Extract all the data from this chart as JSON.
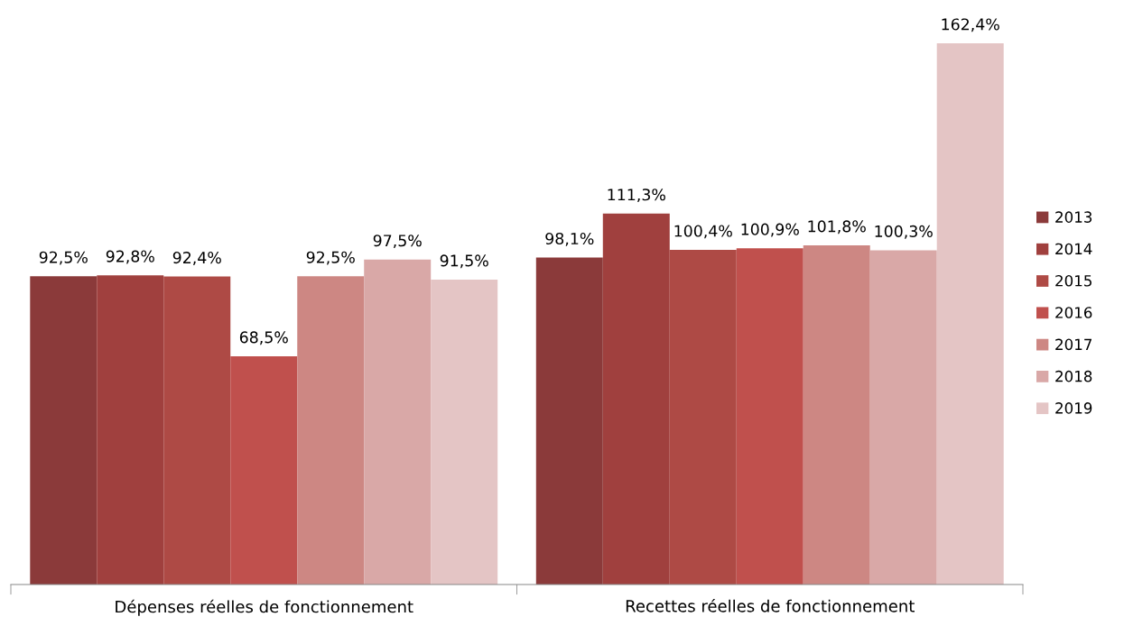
{
  "chart_data": {
    "type": "bar",
    "categories": [
      "Dépenses réelles de fonctionnement",
      "Recettes réelles de fonctionnement"
    ],
    "series": [
      {
        "name": "2013",
        "color": "#8b3a3a",
        "values": [
          92.5,
          98.1
        ],
        "value_labels": [
          "92,5%",
          "98,1%"
        ]
      },
      {
        "name": "2014",
        "color": "#a0403e",
        "values": [
          92.8,
          111.3
        ],
        "value_labels": [
          "92,8%",
          "111,3%"
        ]
      },
      {
        "name": "2015",
        "color": "#ae4a45",
        "values": [
          92.4,
          100.4
        ],
        "value_labels": [
          "92,4%",
          "100,4%"
        ]
      },
      {
        "name": "2016",
        "color": "#c0504d",
        "values": [
          68.5,
          100.9
        ],
        "value_labels": [
          "68,5%",
          "100,9%"
        ]
      },
      {
        "name": "2017",
        "color": "#cd8783",
        "values": [
          92.5,
          101.8
        ],
        "value_labels": [
          "92,5%",
          "101,8%"
        ]
      },
      {
        "name": "2018",
        "color": "#d9a8a7",
        "values": [
          97.5,
          100.3
        ],
        "value_labels": [
          "97,5%",
          "100,3%"
        ]
      },
      {
        "name": "2019",
        "color": "#e4c5c5",
        "values": [
          91.5,
          162.4
        ],
        "value_labels": [
          "91,5%",
          "162,4%"
        ]
      }
    ],
    "legend": "right",
    "grid": false
  }
}
